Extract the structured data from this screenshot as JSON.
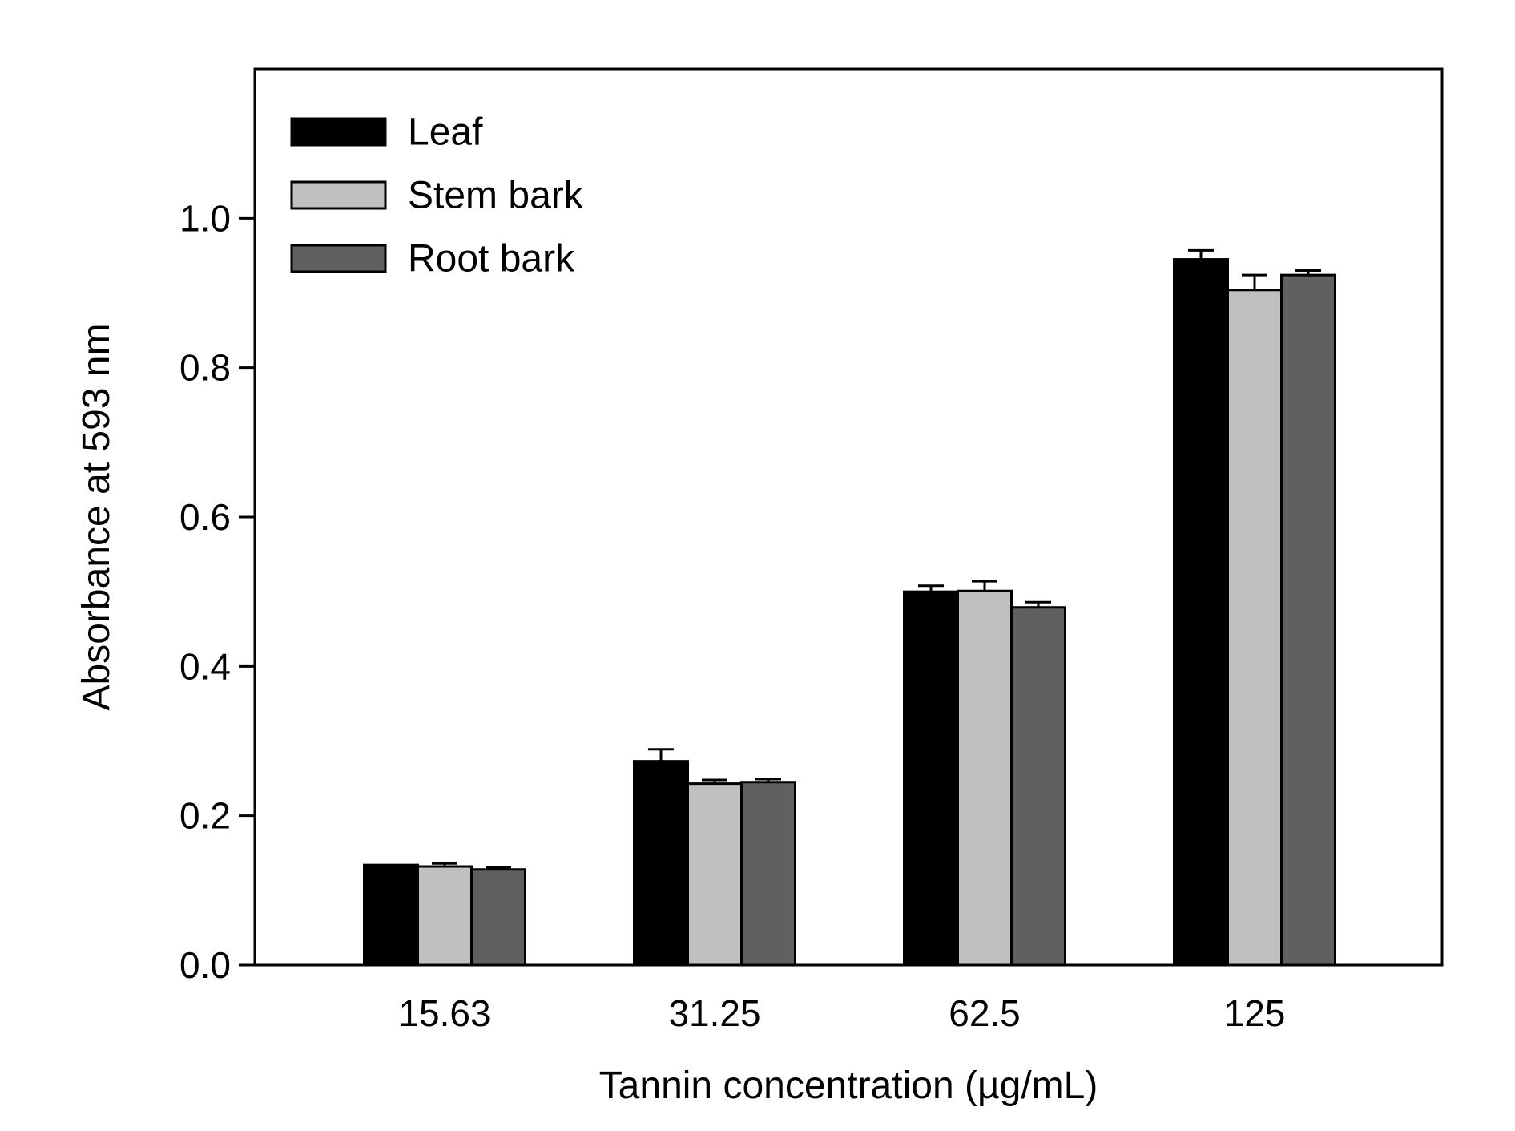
{
  "chart_data": {
    "type": "bar",
    "title": "",
    "xlabel": "Tannin concentration (µg/mL)",
    "ylabel": "Absorbance at 593 nm",
    "ylim": [
      0,
      1.2
    ],
    "yticks": [
      0.0,
      0.2,
      0.4,
      0.6,
      0.8,
      1.0
    ],
    "ytick_labels": [
      "0.0",
      "0.2",
      "0.4",
      "0.6",
      "0.8",
      "1.0"
    ],
    "categories": [
      "15.63",
      "31.25",
      "62.5",
      "125"
    ],
    "legend_position": "top-left",
    "grid": false,
    "series": [
      {
        "name": "Leaf",
        "color": "#000000",
        "values": [
          0.134,
          0.273,
          0.5,
          0.945
        ],
        "errors": [
          0.0,
          0.016,
          0.008,
          0.012
        ]
      },
      {
        "name": "Stem bark",
        "color": "#c0c0c0",
        "values": [
          0.132,
          0.243,
          0.501,
          0.904
        ],
        "errors": [
          0.004,
          0.005,
          0.013,
          0.02
        ]
      },
      {
        "name": "Root bark",
        "color": "#606060",
        "values": [
          0.128,
          0.245,
          0.479,
          0.924
        ],
        "errors": [
          0.003,
          0.004,
          0.007,
          0.006
        ]
      }
    ]
  }
}
